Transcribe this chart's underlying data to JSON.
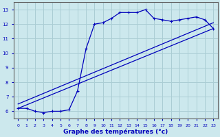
{
  "xlabel": "Graphe des températures (°c)",
  "bg_color": "#cce8ed",
  "grid_color": "#aacdd4",
  "line_color": "#0000bb",
  "xlim": [
    -0.5,
    23.5
  ],
  "ylim": [
    5.5,
    13.5
  ],
  "xticks": [
    0,
    1,
    2,
    3,
    4,
    5,
    6,
    7,
    8,
    9,
    10,
    11,
    12,
    13,
    14,
    15,
    16,
    17,
    18,
    19,
    20,
    21,
    22,
    23
  ],
  "yticks": [
    6,
    7,
    8,
    9,
    10,
    11,
    12,
    13
  ],
  "line1_x": [
    0,
    1,
    2,
    3,
    4,
    5,
    6,
    7,
    8,
    9,
    10,
    11,
    12,
    13,
    14,
    15,
    16,
    17,
    18,
    19,
    20,
    21,
    22,
    23
  ],
  "line1_y": [
    6.2,
    6.2,
    6.0,
    5.9,
    6.0,
    6.0,
    6.1,
    7.4,
    10.3,
    12.0,
    12.1,
    12.4,
    12.8,
    12.8,
    12.8,
    13.0,
    12.4,
    12.3,
    12.2,
    12.3,
    12.4,
    12.5,
    12.3,
    11.7
  ],
  "line2_x": [
    0,
    23
  ],
  "line2_y": [
    6.2,
    11.7
  ],
  "line3_x": [
    0,
    23
  ],
  "line3_y": [
    6.2,
    11.7
  ]
}
